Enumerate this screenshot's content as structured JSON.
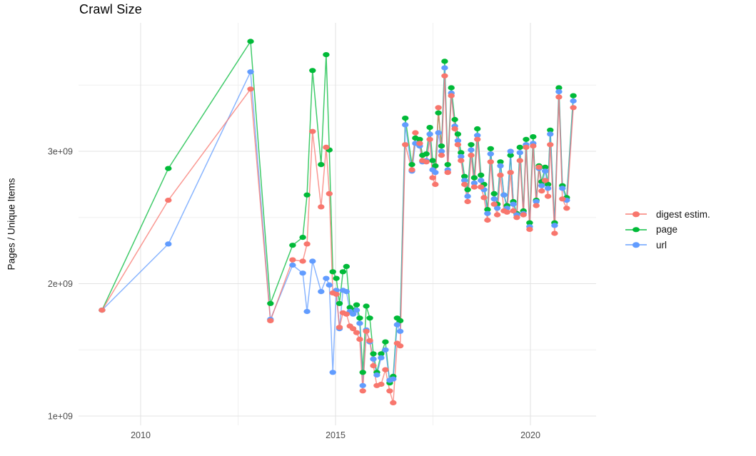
{
  "page": {
    "title": "Crawl Size"
  },
  "chart_data": {
    "type": "line",
    "title": "Crawl Size",
    "xlabel": "",
    "ylabel": "Pages / Unique Items",
    "y_unit": "1e9 (billions of pages / unique items)",
    "grid": true,
    "legend_position": "right",
    "xlim": [
      2008.4,
      2021.7
    ],
    "ylim": [
      930000000,
      3980000000
    ],
    "x_ticks": [
      {
        "v": 2010,
        "label": "2010"
      },
      {
        "v": 2015,
        "label": "2015"
      },
      {
        "v": 2020,
        "label": "2020"
      }
    ],
    "y_ticks": [
      {
        "v": 1,
        "label": "1e+09"
      },
      {
        "v": 2,
        "label": "2e+09"
      },
      {
        "v": 3,
        "label": "3e+09"
      }
    ],
    "x_minor": [
      2012.5,
      2017.5
    ],
    "y_minor": [
      1.5,
      2.5,
      3.5
    ],
    "grid_color": "#e3e3e3",
    "grid_minor_color": "#efefef",
    "tick_text_color": "#4d4d4d",
    "x": [
      2009.01,
      2010.71,
      2012.82,
      2013.33,
      2013.9,
      2014.16,
      2014.27,
      2014.41,
      2014.63,
      2014.76,
      2014.84,
      2014.93,
      2015.02,
      2015.1,
      2015.19,
      2015.28,
      2015.37,
      2015.45,
      2015.54,
      2015.62,
      2015.7,
      2015.79,
      2015.88,
      2015.97,
      2016.06,
      2016.17,
      2016.28,
      2016.39,
      2016.48,
      2016.58,
      2016.66,
      2016.79,
      2016.96,
      2017.05,
      2017.16,
      2017.23,
      2017.33,
      2017.42,
      2017.49,
      2017.56,
      2017.64,
      2017.72,
      2017.8,
      2017.88,
      2017.97,
      2018.06,
      2018.14,
      2018.22,
      2018.31,
      2018.39,
      2018.48,
      2018.56,
      2018.64,
      2018.73,
      2018.81,
      2018.9,
      2018.98,
      2019.07,
      2019.15,
      2019.23,
      2019.32,
      2019.4,
      2019.49,
      2019.56,
      2019.65,
      2019.73,
      2019.82,
      2019.89,
      2019.98,
      2020.07,
      2020.15,
      2020.22,
      2020.29,
      2020.38,
      2020.45,
      2020.51,
      2020.62,
      2020.73,
      2020.82,
      2020.93,
      2021.1
    ],
    "series": [
      {
        "name": "digest estim.",
        "key": "digest-estim",
        "color": "#F8766D",
        "values": [
          1.8,
          2.63,
          3.47,
          1.72,
          2.18,
          2.17,
          2.3,
          3.15,
          2.58,
          3.03,
          2.68,
          1.93,
          1.92,
          1.67,
          1.78,
          1.77,
          1.68,
          1.66,
          1.63,
          1.58,
          1.19,
          1.64,
          1.57,
          1.38,
          1.23,
          1.24,
          1.35,
          1.19,
          1.1,
          1.55,
          1.53,
          3.05,
          2.86,
          3.14,
          3.06,
          2.93,
          2.92,
          3.09,
          2.8,
          2.75,
          3.33,
          2.97,
          3.57,
          2.84,
          3.42,
          3.17,
          3.05,
          2.93,
          2.75,
          2.62,
          2.97,
          2.73,
          3.09,
          2.73,
          2.65,
          2.48,
          2.92,
          2.6,
          2.52,
          2.82,
          2.55,
          2.54,
          2.84,
          2.55,
          2.5,
          2.93,
          2.52,
          3.03,
          2.41,
          3.04,
          2.59,
          2.88,
          2.7,
          2.78,
          2.66,
          3.05,
          2.38,
          3.41,
          2.64,
          2.57,
          3.33
        ]
      },
      {
        "name": "page",
        "key": "page",
        "color": "#00BA38",
        "values": [
          1.8,
          2.87,
          3.83,
          1.85,
          2.29,
          2.35,
          2.67,
          3.61,
          2.9,
          3.73,
          3.01,
          2.09,
          2.04,
          1.85,
          2.09,
          2.13,
          1.82,
          1.8,
          1.84,
          1.74,
          1.33,
          1.83,
          1.74,
          1.47,
          1.33,
          1.47,
          1.56,
          1.25,
          1.3,
          1.74,
          1.72,
          3.25,
          2.9,
          3.1,
          3.09,
          2.97,
          2.98,
          3.18,
          2.93,
          2.89,
          3.29,
          3.04,
          3.68,
          2.9,
          3.48,
          3.24,
          3.13,
          2.99,
          2.81,
          2.71,
          3.05,
          2.8,
          3.17,
          2.82,
          2.75,
          2.56,
          3.02,
          2.68,
          2.6,
          2.92,
          2.67,
          2.59,
          2.97,
          2.62,
          2.53,
          3.03,
          2.55,
          3.09,
          2.46,
          3.11,
          2.63,
          2.89,
          2.77,
          2.88,
          2.75,
          3.16,
          2.46,
          3.48,
          2.74,
          2.65,
          3.42
        ]
      },
      {
        "name": "url",
        "key": "url",
        "color": "#619CFF",
        "values": [
          1.8,
          2.3,
          3.6,
          1.73,
          2.14,
          2.08,
          1.79,
          2.17,
          1.94,
          2.04,
          1.99,
          1.33,
          1.95,
          1.66,
          1.95,
          1.94,
          1.79,
          1.77,
          1.8,
          1.7,
          1.23,
          1.65,
          1.56,
          1.43,
          1.31,
          1.44,
          1.5,
          1.27,
          1.28,
          1.69,
          1.64,
          3.2,
          2.85,
          3.06,
          3.04,
          2.92,
          2.93,
          3.13,
          2.86,
          2.84,
          3.14,
          3.0,
          3.63,
          2.86,
          3.44,
          3.19,
          3.08,
          2.96,
          2.78,
          2.66,
          3.01,
          2.76,
          3.12,
          2.78,
          2.71,
          2.53,
          2.98,
          2.64,
          2.57,
          2.89,
          2.67,
          2.57,
          3.0,
          2.6,
          2.52,
          2.99,
          2.53,
          3.05,
          2.43,
          3.06,
          2.62,
          2.87,
          2.74,
          2.85,
          2.72,
          3.13,
          2.44,
          3.45,
          2.72,
          2.63,
          3.38
        ]
      }
    ]
  }
}
